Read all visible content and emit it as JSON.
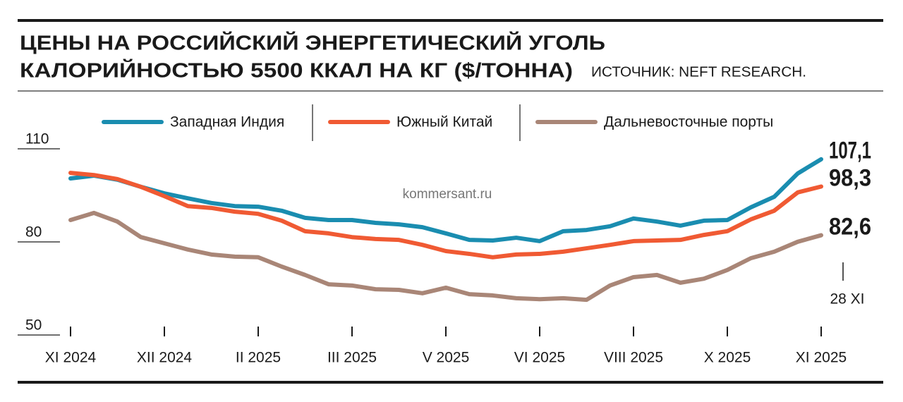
{
  "chart_data": {
    "type": "line",
    "title": [
      "ЦЕНЫ НА РОССИЙСКИЙ ЭНЕРГЕТИЧЕСКИЙ УГОЛЬ",
      "КАЛОРИЙНОСТЬЮ 5500 ККАЛ НА КГ ($/ТОННА)"
    ],
    "source": "ИСТОЧНИК: NEFT RESEARCH.",
    "watermark": "kommersant.ru",
    "annotation": "28 XI",
    "categories": [
      "XI 2024",
      null,
      null,
      null,
      "XII 2024",
      null,
      null,
      null,
      "II 2025",
      null,
      null,
      null,
      "III 2025",
      null,
      null,
      null,
      "V 2025",
      null,
      null,
      null,
      "VI 2025",
      null,
      null,
      null,
      "VIII 2025",
      null,
      null,
      null,
      "X 2025",
      null,
      null,
      null,
      "XI 2025"
    ],
    "ylim": [
      50,
      110
    ],
    "yticks": [
      50,
      80,
      110
    ],
    "series": [
      {
        "name": "Западная Индия",
        "color": "#1a8db0",
        "values": [
          100.9,
          101.8,
          100.5,
          98.2,
          96.1,
          94.5,
          93.0,
          92.0,
          91.8,
          90.5,
          88.2,
          87.5,
          87.5,
          86.6,
          86.1,
          85.2,
          83.2,
          81.1,
          80.9,
          81.8,
          80.7,
          83.9,
          84.3,
          85.5,
          88.0,
          87.0,
          85.7,
          87.3,
          87.5,
          91.6,
          95.0,
          102.5,
          107.1
        ],
        "value_labels": [
          null,
          null,
          null,
          null,
          null,
          null,
          null,
          null,
          null,
          null,
          null,
          null,
          null,
          null,
          null,
          null,
          null,
          null,
          null,
          null,
          null,
          null,
          null,
          null,
          null,
          null,
          null,
          null,
          null,
          null,
          null,
          null,
          "107,1"
        ]
      },
      {
        "name": "Южный Китай",
        "color": "#f05a33",
        "values": [
          102.7,
          102.0,
          100.7,
          98.2,
          95.2,
          92.0,
          91.4,
          90.2,
          89.5,
          87.3,
          83.9,
          83.2,
          82.0,
          81.4,
          81.1,
          79.5,
          77.5,
          76.6,
          75.5,
          76.4,
          76.6,
          77.3,
          78.4,
          79.5,
          80.7,
          80.9,
          81.1,
          82.7,
          83.9,
          87.7,
          90.5,
          96.4,
          98.3
        ],
        "value_labels": [
          null,
          null,
          null,
          null,
          null,
          null,
          null,
          null,
          null,
          null,
          null,
          null,
          null,
          null,
          null,
          null,
          null,
          null,
          null,
          null,
          null,
          null,
          null,
          null,
          null,
          null,
          null,
          null,
          null,
          null,
          null,
          null,
          "98,3"
        ]
      },
      {
        "name": "Дальневосточные порты",
        "color": "#a98677",
        "values": [
          87.5,
          89.8,
          87.0,
          82.0,
          80.0,
          78.0,
          76.4,
          75.7,
          75.5,
          72.5,
          69.8,
          66.8,
          66.4,
          65.2,
          65.0,
          63.9,
          65.7,
          63.6,
          63.2,
          62.3,
          62.0,
          62.3,
          61.8,
          66.4,
          69.1,
          69.8,
          67.3,
          68.6,
          71.4,
          75.2,
          77.3,
          80.5,
          82.6
        ],
        "value_labels": [
          null,
          null,
          null,
          null,
          null,
          null,
          null,
          null,
          null,
          null,
          null,
          null,
          null,
          null,
          null,
          null,
          null,
          null,
          null,
          null,
          null,
          null,
          null,
          null,
          null,
          null,
          null,
          null,
          null,
          null,
          null,
          null,
          "82,6"
        ]
      }
    ]
  }
}
